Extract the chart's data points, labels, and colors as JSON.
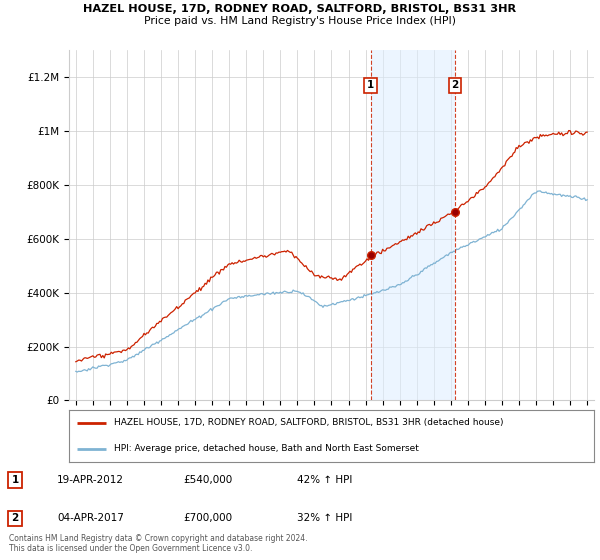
{
  "title1": "HAZEL HOUSE, 17D, RODNEY ROAD, SALTFORD, BRISTOL, BS31 3HR",
  "title2": "Price paid vs. HM Land Registry's House Price Index (HPI)",
  "ylim": [
    0,
    1300000
  ],
  "yticks": [
    0,
    200000,
    400000,
    600000,
    800000,
    1000000,
    1200000
  ],
  "ytick_labels": [
    "£0",
    "£200K",
    "£400K",
    "£600K",
    "£800K",
    "£1M",
    "£1.2M"
  ],
  "sale1_date": 2012.29,
  "sale1_price": 540000,
  "sale2_date": 2017.25,
  "sale2_price": 700000,
  "sale1_label": "1",
  "sale2_label": "2",
  "red_color": "#cc2200",
  "blue_color": "#7fb3d3",
  "shade_color": "#ddeeff",
  "legend_line1": "HAZEL HOUSE, 17D, RODNEY ROAD, SALTFORD, BRISTOL, BS31 3HR (detached house)",
  "legend_line2": "HPI: Average price, detached house, Bath and North East Somerset",
  "table_row1": [
    "1",
    "19-APR-2012",
    "£540,000",
    "42% ↑ HPI"
  ],
  "table_row2": [
    "2",
    "04-APR-2017",
    "£700,000",
    "32% ↑ HPI"
  ],
  "footnote": "Contains HM Land Registry data © Crown copyright and database right 2024.\nThis data is licensed under the Open Government Licence v3.0.",
  "background_color": "#ffffff"
}
